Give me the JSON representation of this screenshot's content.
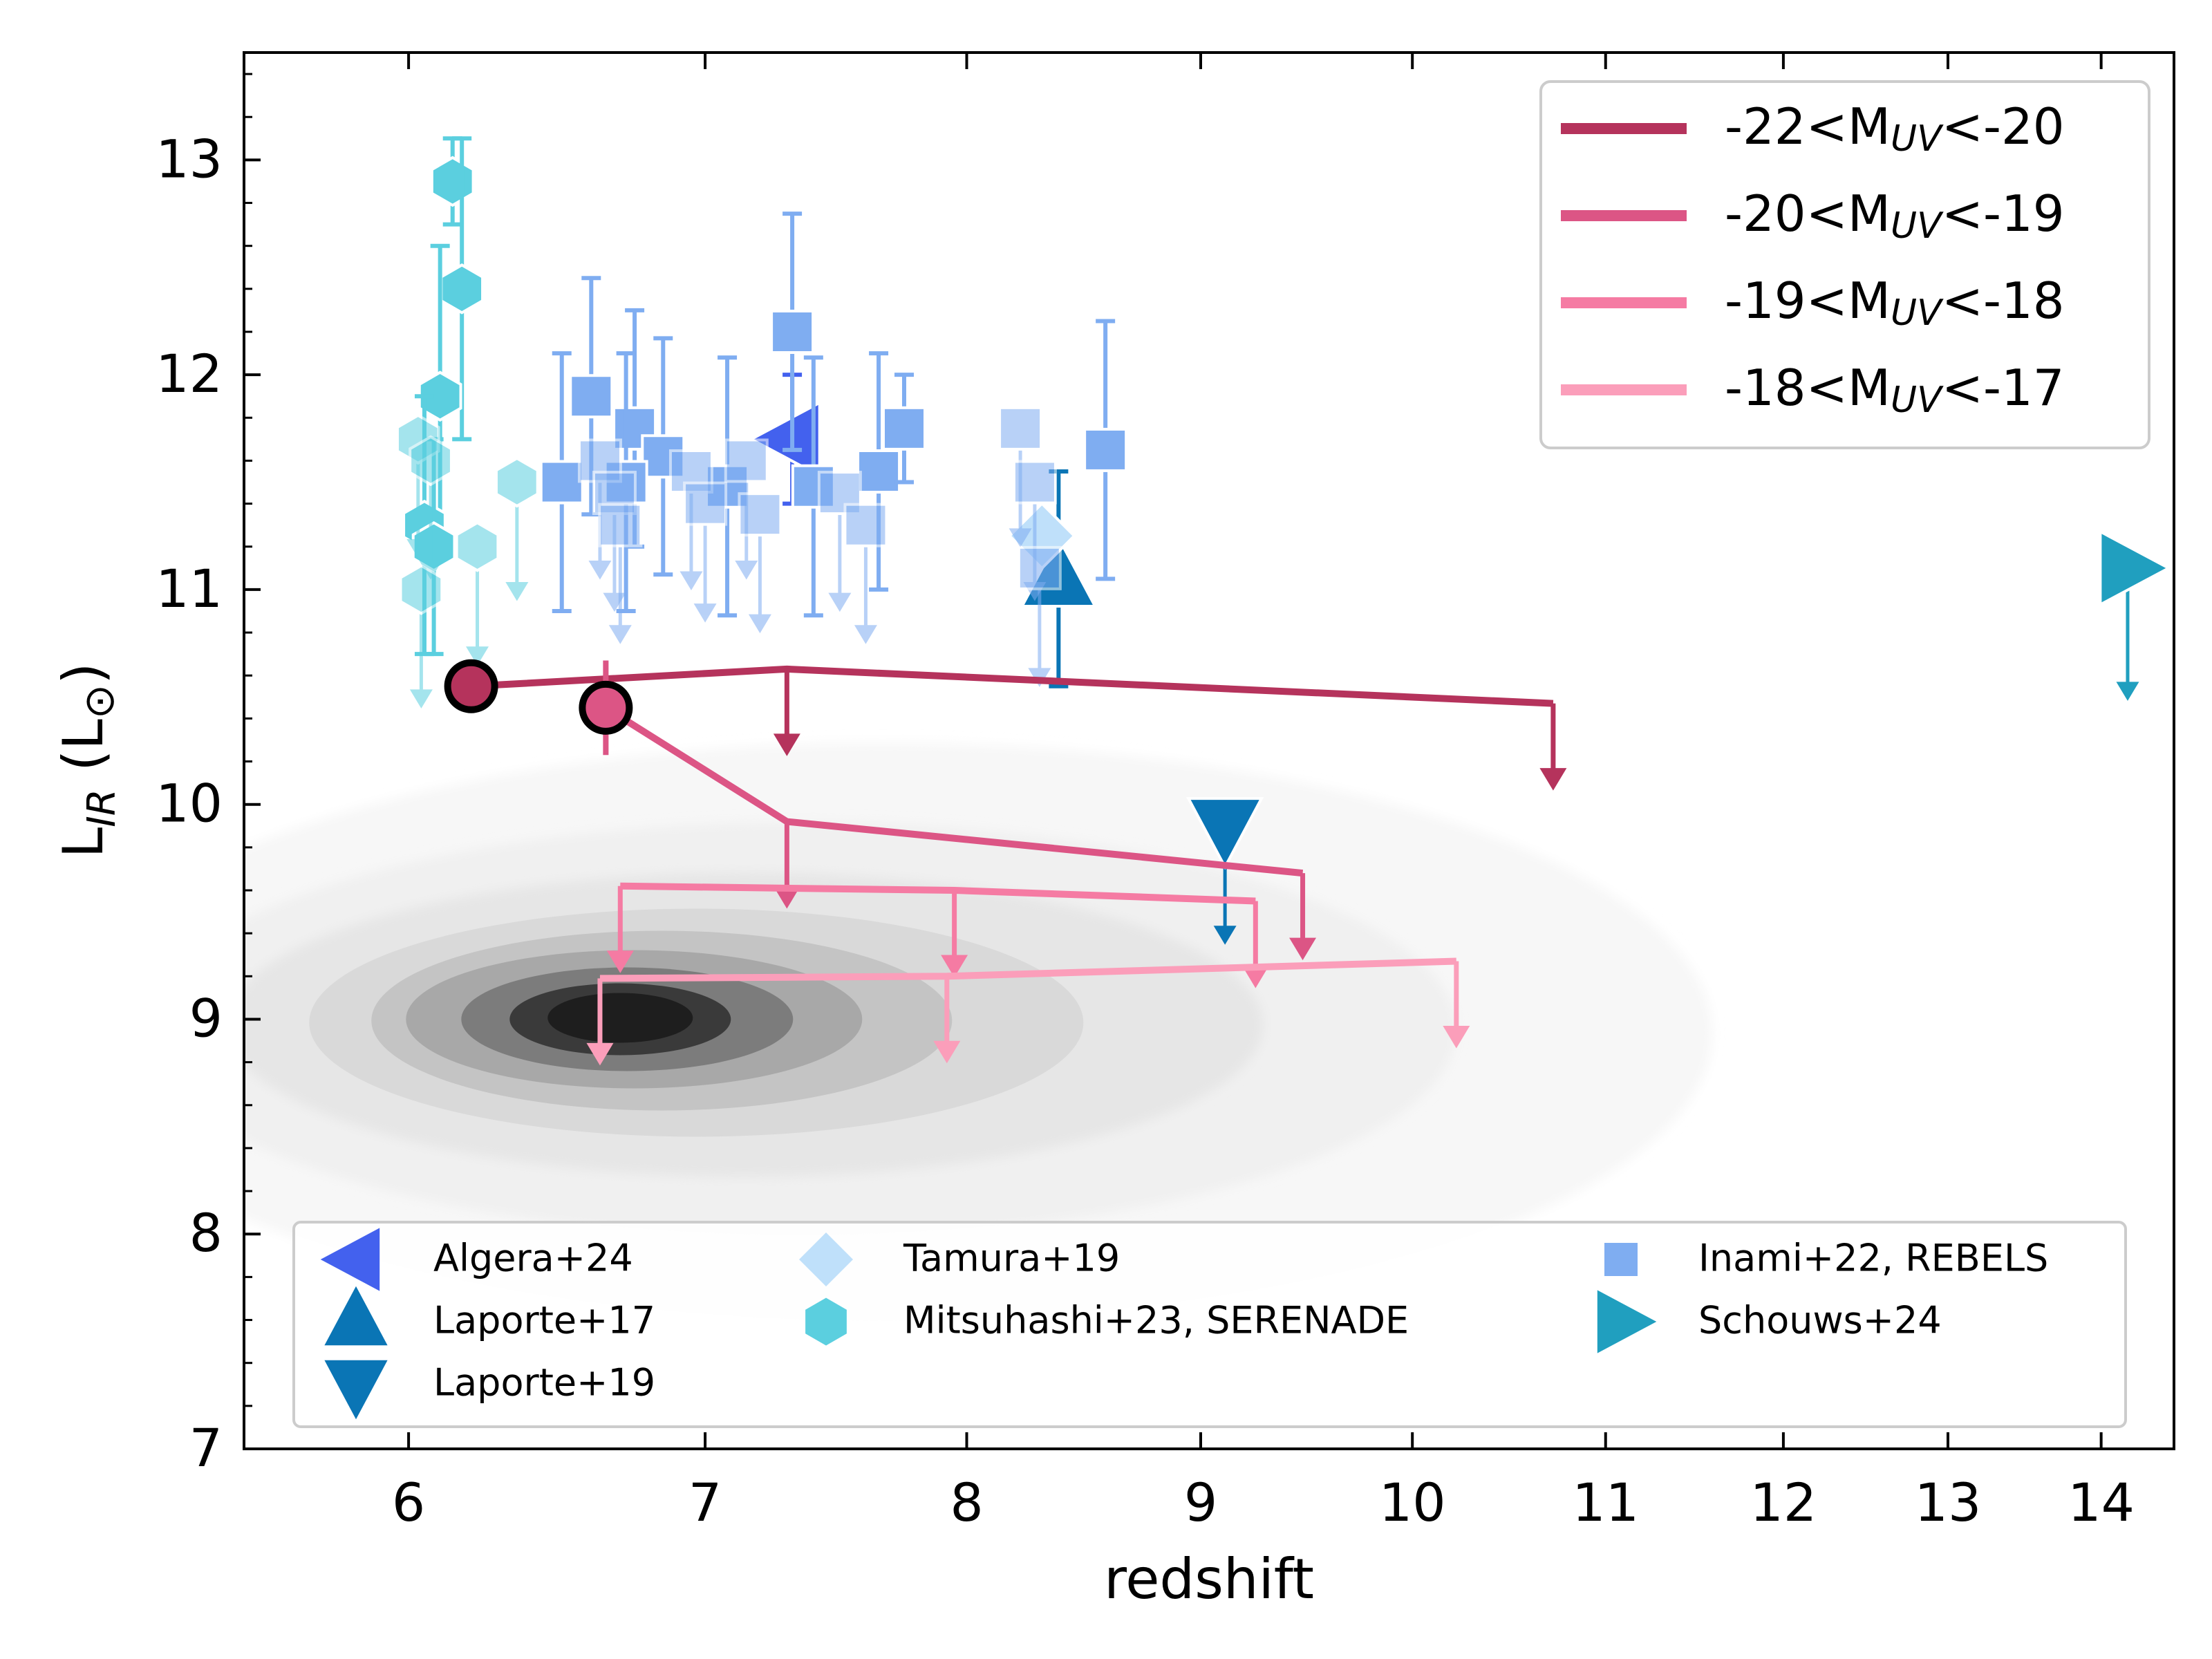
{
  "chart_data": {
    "type": "scatter",
    "xlabel": "redshift",
    "ylabel": "L_IR (L_⊙)",
    "ylabel_main": "L",
    "ylabel_sub": "IR",
    "ylabel_unit": " (L",
    "ylabel_sun": "⊙",
    "ylabel_close": ")",
    "x_ticks": [
      "6",
      "7",
      "8",
      "9",
      "10",
      "11",
      "12",
      "13",
      "14"
    ],
    "y_ticks": [
      "7",
      "8",
      "9",
      "10",
      "11",
      "12",
      "13"
    ],
    "ylim": [
      7,
      13.5
    ],
    "x_scale": "log(1+z)",
    "x_range": [
      5.5,
      14.5
    ],
    "grid": false,
    "stack_series": [
      {
        "label": "-22<M_UV<-20",
        "text_main": "-22<M",
        "sub": "UV",
        "text_end": "<-20",
        "color": "#b5335c",
        "detections": [
          {
            "x": 6.2,
            "y": 10.55
          }
        ],
        "limit_line": [
          [
            6.2,
            10.55
          ],
          [
            7.3,
            10.63
          ],
          [
            10.72,
            10.47
          ]
        ],
        "upper_limits": [
          {
            "x": 7.3,
            "y": 10.63
          },
          {
            "x": 10.72,
            "y": 10.47
          }
        ]
      },
      {
        "label": "-20<M_UV<-19",
        "text_main": "-20<M",
        "sub": "UV",
        "text_end": "<-19",
        "color": "#dc5585",
        "detections": [
          {
            "x": 6.65,
            "y": 10.45,
            "yerr": 0.22
          }
        ],
        "limit_line": [
          [
            6.65,
            10.45
          ],
          [
            7.3,
            9.92
          ],
          [
            9.47,
            9.68
          ]
        ],
        "upper_limits": [
          {
            "x": 7.3,
            "y": 9.92
          },
          {
            "x": 9.47,
            "y": 9.68
          }
        ]
      },
      {
        "label": "-19<M_UV<-18",
        "text_main": "-19<M",
        "sub": "UV",
        "text_end": "<-18",
        "color": "#f57ba3",
        "detections": [],
        "limit_line": [
          [
            6.7,
            9.62
          ],
          [
            7.95,
            9.6
          ],
          [
            9.25,
            9.55
          ]
        ],
        "upper_limits": [
          {
            "x": 6.7,
            "y": 9.62
          },
          {
            "x": 7.95,
            "y": 9.6
          },
          {
            "x": 9.25,
            "y": 9.55
          }
        ]
      },
      {
        "label": "-18<M_UV<-17",
        "text_main": "-18<M",
        "sub": "UV",
        "text_end": "<-17",
        "color": "#fb9eba",
        "detections": [],
        "limit_line": [
          [
            6.63,
            9.19
          ],
          [
            7.92,
            9.2
          ],
          [
            10.22,
            9.27
          ]
        ],
        "upper_limits": [
          {
            "x": 6.63,
            "y": 9.19
          },
          {
            "x": 7.92,
            "y": 9.2
          },
          {
            "x": 10.22,
            "y": 9.27
          }
        ]
      }
    ],
    "literature": [
      {
        "name": "Algera+24",
        "marker": "triangle-left",
        "color": "#4361ee",
        "points": [
          {
            "x": 7.32,
            "y": 11.7,
            "yerr": 0.3
          }
        ]
      },
      {
        "name": "Laporte+17",
        "marker": "triangle-up",
        "color": "#0a75b5",
        "points": [
          {
            "x": 8.38,
            "y": 11.05,
            "yerr": 0.5
          }
        ]
      },
      {
        "name": "Laporte+19",
        "marker": "triangle-down",
        "color": "#0a75b5",
        "points": [
          {
            "x": 9.11,
            "y": 9.9,
            "limit": true
          }
        ]
      },
      {
        "name": "Tamura+19",
        "marker": "diamond",
        "color": "#bfe0fa",
        "points": [
          {
            "x": 8.31,
            "y": 11.25
          }
        ]
      },
      {
        "name": "Mitsuhashi+23, SERENADE",
        "marker": "hexagon",
        "color": "#5bcfdf",
        "points": [
          {
            "x": 6.14,
            "y": 12.9,
            "yerr": 0.2
          },
          {
            "x": 6.17,
            "y": 12.4,
            "yerr": 0.7
          },
          {
            "x": 6.1,
            "y": 11.9,
            "yerr": 0.7
          },
          {
            "x": 6.05,
            "y": 11.3,
            "yerr": 0.6
          },
          {
            "x": 6.08,
            "y": 11.2,
            "yerr": 0.5
          },
          {
            "x": 6.03,
            "y": 11.7,
            "limit": true
          },
          {
            "x": 6.07,
            "y": 11.6,
            "limit": true
          },
          {
            "x": 6.22,
            "y": 11.2,
            "limit": true
          },
          {
            "x": 6.35,
            "y": 11.5,
            "limit": true
          },
          {
            "x": 6.04,
            "y": 11.0,
            "limit": true
          }
        ]
      },
      {
        "name": "Inami+22, REBELS",
        "marker": "square",
        "color": "#7fadf1",
        "points": [
          {
            "x": 6.5,
            "y": 11.5,
            "yerr": 0.6
          },
          {
            "x": 6.6,
            "y": 11.9,
            "yerr": 0.55
          },
          {
            "x": 6.75,
            "y": 11.75,
            "yerr": 0.55
          },
          {
            "x": 6.85,
            "y": 11.62,
            "yerr": 0.55
          },
          {
            "x": 7.08,
            "y": 11.48,
            "yerr": 0.6
          },
          {
            "x": 7.32,
            "y": 12.2,
            "yerr": 0.55
          },
          {
            "x": 7.4,
            "y": 11.48,
            "yerr": 0.6
          },
          {
            "x": 7.65,
            "y": 11.55,
            "yerr": 0.55
          },
          {
            "x": 7.75,
            "y": 11.75,
            "yerr": 0.25
          },
          {
            "x": 8.58,
            "y": 11.65,
            "yerr": 0.6
          },
          {
            "x": 6.72,
            "y": 11.5,
            "yerr": 0.6
          },
          {
            "x": 6.63,
            "y": 11.6,
            "limit": true
          },
          {
            "x": 6.68,
            "y": 11.45,
            "limit": true
          },
          {
            "x": 6.7,
            "y": 11.3,
            "limit": true
          },
          {
            "x": 6.95,
            "y": 11.55,
            "limit": true
          },
          {
            "x": 7.0,
            "y": 11.4,
            "limit": true
          },
          {
            "x": 7.15,
            "y": 11.6,
            "limit": true
          },
          {
            "x": 7.2,
            "y": 11.35,
            "limit": true
          },
          {
            "x": 7.5,
            "y": 11.45,
            "limit": true
          },
          {
            "x": 7.6,
            "y": 11.3,
            "limit": true
          },
          {
            "x": 8.22,
            "y": 11.75,
            "limit": true
          },
          {
            "x": 8.28,
            "y": 11.5,
            "limit": true
          },
          {
            "x": 8.3,
            "y": 11.1,
            "limit": true
          }
        ]
      },
      {
        "name": "Schouws+24",
        "marker": "triangle-right",
        "color": "#209fbf",
        "points": [
          {
            "x": 14.18,
            "y": 11.1,
            "limit": true
          }
        ]
      }
    ],
    "background": {
      "type": "density-contour",
      "color": "grey",
      "peak": {
        "x": 6.7,
        "y": 9.0
      }
    },
    "legend_upper": "top-right",
    "legend_lower": "bottom"
  }
}
